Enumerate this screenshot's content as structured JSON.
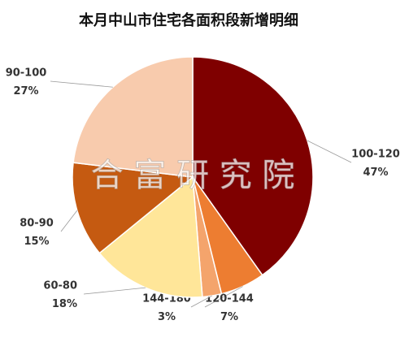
{
  "chart_data": {
    "type": "pie",
    "title": "本月中山市住宅各面积段新增明细",
    "watermark": "合 富 研 究 院",
    "categories": [
      "100-120",
      "120-144",
      "144-180",
      "60-80",
      "80-90",
      "90-100"
    ],
    "values": [
      47,
      7,
      3,
      18,
      15,
      27
    ],
    "colors": [
      "#7f0000",
      "#ed7d31",
      "#f4a46c",
      "#ffe699",
      "#c55a11",
      "#f8cbad"
    ]
  }
}
